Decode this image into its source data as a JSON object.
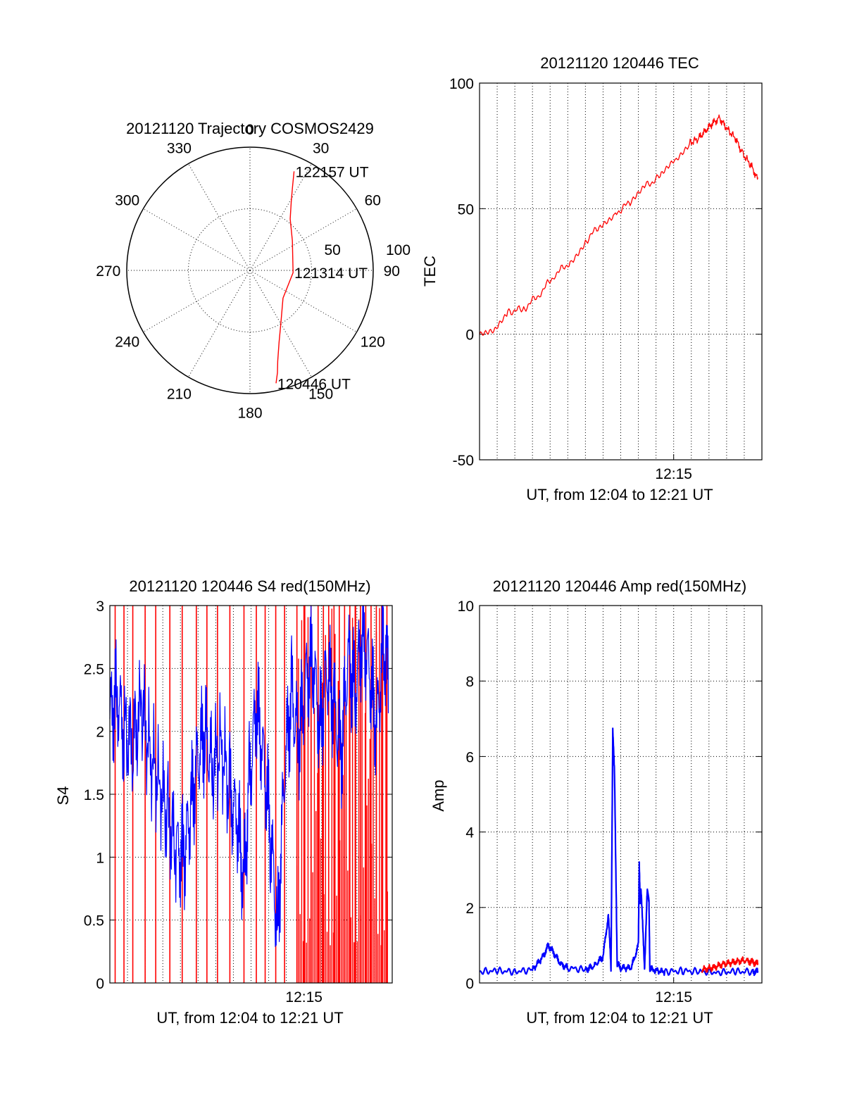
{
  "chart_data": [
    {
      "id": "trajectory",
      "type": "polar",
      "title": "20121120 Trajectory COSMOS2429",
      "angle_labels": [
        "0",
        "30",
        "60",
        "90",
        "120",
        "150",
        "180",
        "210",
        "240",
        "270",
        "300",
        "330"
      ],
      "radial_labels": [
        "50",
        "100"
      ],
      "rlim": [
        0,
        100
      ],
      "direction": "clockwise from north",
      "grid": true,
      "series": [
        {
          "color": "#ff0000",
          "points_az_r": [
            [
              167,
              94
            ],
            [
              165,
              86
            ],
            [
              163,
              77
            ],
            [
              158,
              63
            ],
            [
              150,
              50
            ],
            [
              130,
              35
            ],
            [
              93,
              35
            ],
            [
              55,
              42
            ],
            [
              38,
              53
            ],
            [
              31,
              65
            ],
            [
              27,
              76
            ],
            [
              24,
              88
            ]
          ]
        }
      ],
      "annotations": [
        {
          "text": "122157 UT",
          "az": 24,
          "r": 88
        },
        {
          "text": "121314 UT",
          "az": 93,
          "r": 35
        },
        {
          "text": "120446 UT",
          "az": 167,
          "r": 94
        }
      ]
    },
    {
      "id": "tec",
      "type": "line",
      "title": "20121120 120446 TEC",
      "xlabel": "UT, from 12:04 to 12:21 UT",
      "ylabel": "TEC",
      "x_tick_labels": [
        "12:15"
      ],
      "y_tick_labels": [
        "100",
        "50",
        "0",
        "-50"
      ],
      "ylim": [
        -50,
        100
      ],
      "grid": true,
      "series": [
        {
          "color": "#ff0000",
          "x_minutes_after_1204": [
            0.0,
            0.8,
            1.6,
            2.5,
            3.4,
            4.3,
            5.2,
            6.0,
            6.9,
            7.7,
            8.6,
            9.4,
            10.3,
            11.1,
            11.9,
            12.4,
            12.8,
            13.2,
            13.6,
            14.0,
            14.5,
            14.9,
            15.4,
            15.8
          ],
          "values": [
            0,
            2,
            9,
            10,
            16,
            24,
            29,
            37,
            44,
            48,
            53,
            59,
            63,
            69,
            76,
            78,
            81,
            84,
            86,
            82,
            78,
            72,
            67,
            61
          ]
        }
      ]
    },
    {
      "id": "s4",
      "type": "line",
      "title": "20121120 120446 S4 red(150MHz)",
      "xlabel": "UT, from 12:04 to 12:21 UT",
      "ylabel": "S4",
      "x_tick_labels": [
        "12:15"
      ],
      "y_tick_labels": [
        "3",
        "2.5",
        "2",
        "1.5",
        "1",
        "0.5",
        "0"
      ],
      "ylim": [
        0,
        3
      ],
      "grid": true,
      "series": [
        {
          "color": "#0000ff",
          "x_minutes_after_1204": [
            0.0,
            0.4,
            0.8,
            1.3,
            1.8,
            2.3,
            2.8,
            3.3,
            3.8,
            4.2,
            4.6,
            5.0,
            5.4,
            5.8,
            6.3,
            6.8,
            7.2,
            7.6,
            7.9,
            8.3,
            8.7,
            9.1,
            9.5,
            9.9,
            10.3,
            10.7,
            11.1,
            11.5,
            11.9,
            12.3,
            12.7,
            13.1,
            13.5,
            13.9,
            14.3,
            14.7,
            15.1,
            15.5,
            15.8
          ],
          "values": [
            2.1,
            2.3,
            2.0,
            1.9,
            2.2,
            1.8,
            1.6,
            1.3,
            1.05,
            1.0,
            1.4,
            1.8,
            2.0,
            1.7,
            1.9,
            1.5,
            1.3,
            0.8,
            1.6,
            2.2,
            1.8,
            1.2,
            0.4,
            1.7,
            2.3,
            1.9,
            2.4,
            2.6,
            2.0,
            2.5,
            2.2,
            1.8,
            2.6,
            2.3,
            2.8,
            2.5,
            2.0,
            2.7,
            2.4
          ]
        }
      ],
      "red_spikes_minutes_after_1204": [
        0.3,
        0.8,
        1.3,
        2.0,
        2.6,
        3.4,
        4.1,
        4.9,
        5.5,
        6.1,
        6.8,
        7.6,
        8.3,
        8.8,
        9.4,
        9.9,
        10.6,
        11.0,
        11.4,
        11.8,
        12.1,
        12.4,
        12.7,
        13.0,
        13.3,
        13.6,
        13.9,
        14.2,
        14.5,
        14.8,
        15.1,
        15.4,
        15.7
      ],
      "red_dense_range_minutes_after_1204": [
        10.6,
        15.8
      ]
    },
    {
      "id": "amp",
      "type": "line",
      "title": "20121120 120446 Amp red(150MHz)",
      "xlabel": "UT, from 12:04 to 12:21 UT",
      "ylabel": "Amp",
      "x_tick_labels": [
        "12:15"
      ],
      "y_tick_labels": [
        "10",
        "8",
        "6",
        "4",
        "2",
        "0"
      ],
      "ylim": [
        0,
        10
      ],
      "grid": true,
      "series": [
        {
          "color": "#0000ff",
          "x_minutes_after_1204": [
            0.0,
            1.0,
            2.0,
            3.0,
            3.6,
            3.9,
            4.2,
            4.6,
            5.0,
            6.0,
            6.5,
            7.0,
            7.3,
            7.45,
            7.55,
            7.65,
            7.8,
            8.0,
            8.6,
            9.0,
            9.05,
            9.1,
            9.15,
            9.35,
            9.5,
            9.55,
            9.6,
            9.65,
            9.8,
            10.5,
            11.5,
            12.5,
            13.5,
            14.5,
            15.5,
            15.8
          ],
          "values": [
            0.3,
            0.32,
            0.3,
            0.35,
            0.7,
            1.0,
            0.8,
            0.5,
            0.4,
            0.35,
            0.45,
            0.7,
            1.8,
            0.4,
            6.7,
            5.5,
            0.5,
            0.4,
            0.4,
            1.0,
            3.2,
            2.2,
            2.5,
            0.4,
            2.4,
            2.3,
            2.2,
            0.4,
            0.35,
            0.3,
            0.32,
            0.3,
            0.28,
            0.3,
            0.3,
            0.3
          ]
        },
        {
          "color": "#ff0000",
          "x_minutes_after_1204": [
            12.6,
            13.2,
            13.8,
            14.4,
            15.0,
            15.5,
            15.8
          ],
          "values": [
            0.35,
            0.4,
            0.5,
            0.55,
            0.6,
            0.55,
            0.5
          ]
        }
      ]
    }
  ]
}
